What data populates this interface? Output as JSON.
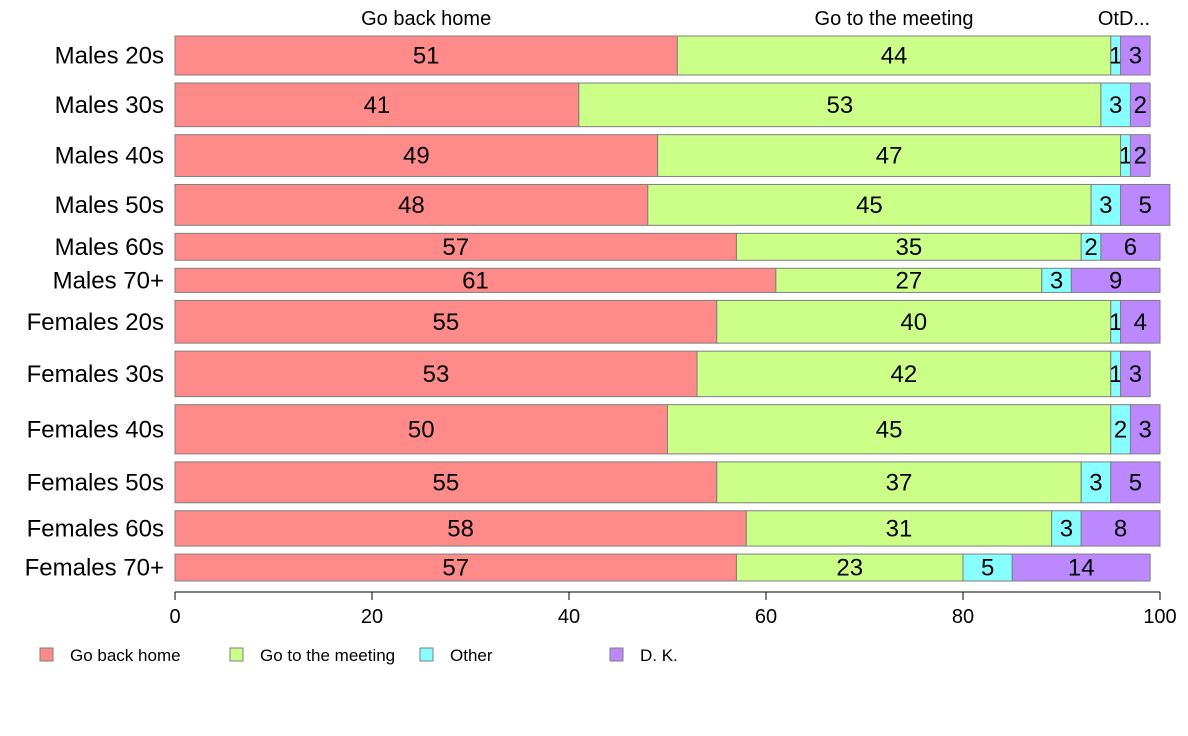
{
  "chart_data": {
    "type": "bar",
    "orientation": "horizontal",
    "stacked": true,
    "categories": [
      "Males 20s",
      "Males 30s",
      "Males 40s",
      "Males 50s",
      "Males 60s",
      "Males 70+",
      "Females 20s",
      "Females 30s",
      "Females 40s",
      "Females 50s",
      "Females 60s",
      "Females 70+"
    ],
    "group_weights": [
      42,
      47,
      45,
      44,
      29,
      26,
      46,
      49,
      53,
      44,
      38,
      29
    ],
    "series": [
      {
        "name": "Go back home",
        "color": "#ff8a8a",
        "values": [
          51,
          41,
          49,
          48,
          57,
          61,
          55,
          53,
          50,
          55,
          58,
          57
        ]
      },
      {
        "name": "Go to the meeting",
        "color": "#ccff88",
        "values": [
          44,
          53,
          47,
          45,
          35,
          27,
          40,
          42,
          45,
          37,
          31,
          23
        ]
      },
      {
        "name": "Other",
        "color": "#88ffff",
        "values": [
          1,
          3,
          1,
          3,
          2,
          3,
          1,
          1,
          2,
          3,
          3,
          5
        ]
      },
      {
        "name": "D. K.",
        "color": "#bb88ff",
        "values": [
          3,
          2,
          2,
          5,
          6,
          9,
          4,
          3,
          3,
          5,
          8,
          14
        ]
      }
    ],
    "top_labels": [
      "Go back home",
      "Go to the meeting",
      "OtD..."
    ],
    "xlim": [
      0,
      100
    ],
    "xticks": [
      0,
      20,
      40,
      60,
      80,
      100
    ],
    "legend": {
      "placement": "bottom-left",
      "labels": [
        "Go back home",
        "Go to the meeting",
        "Other",
        "D. K."
      ]
    },
    "grid": false
  }
}
